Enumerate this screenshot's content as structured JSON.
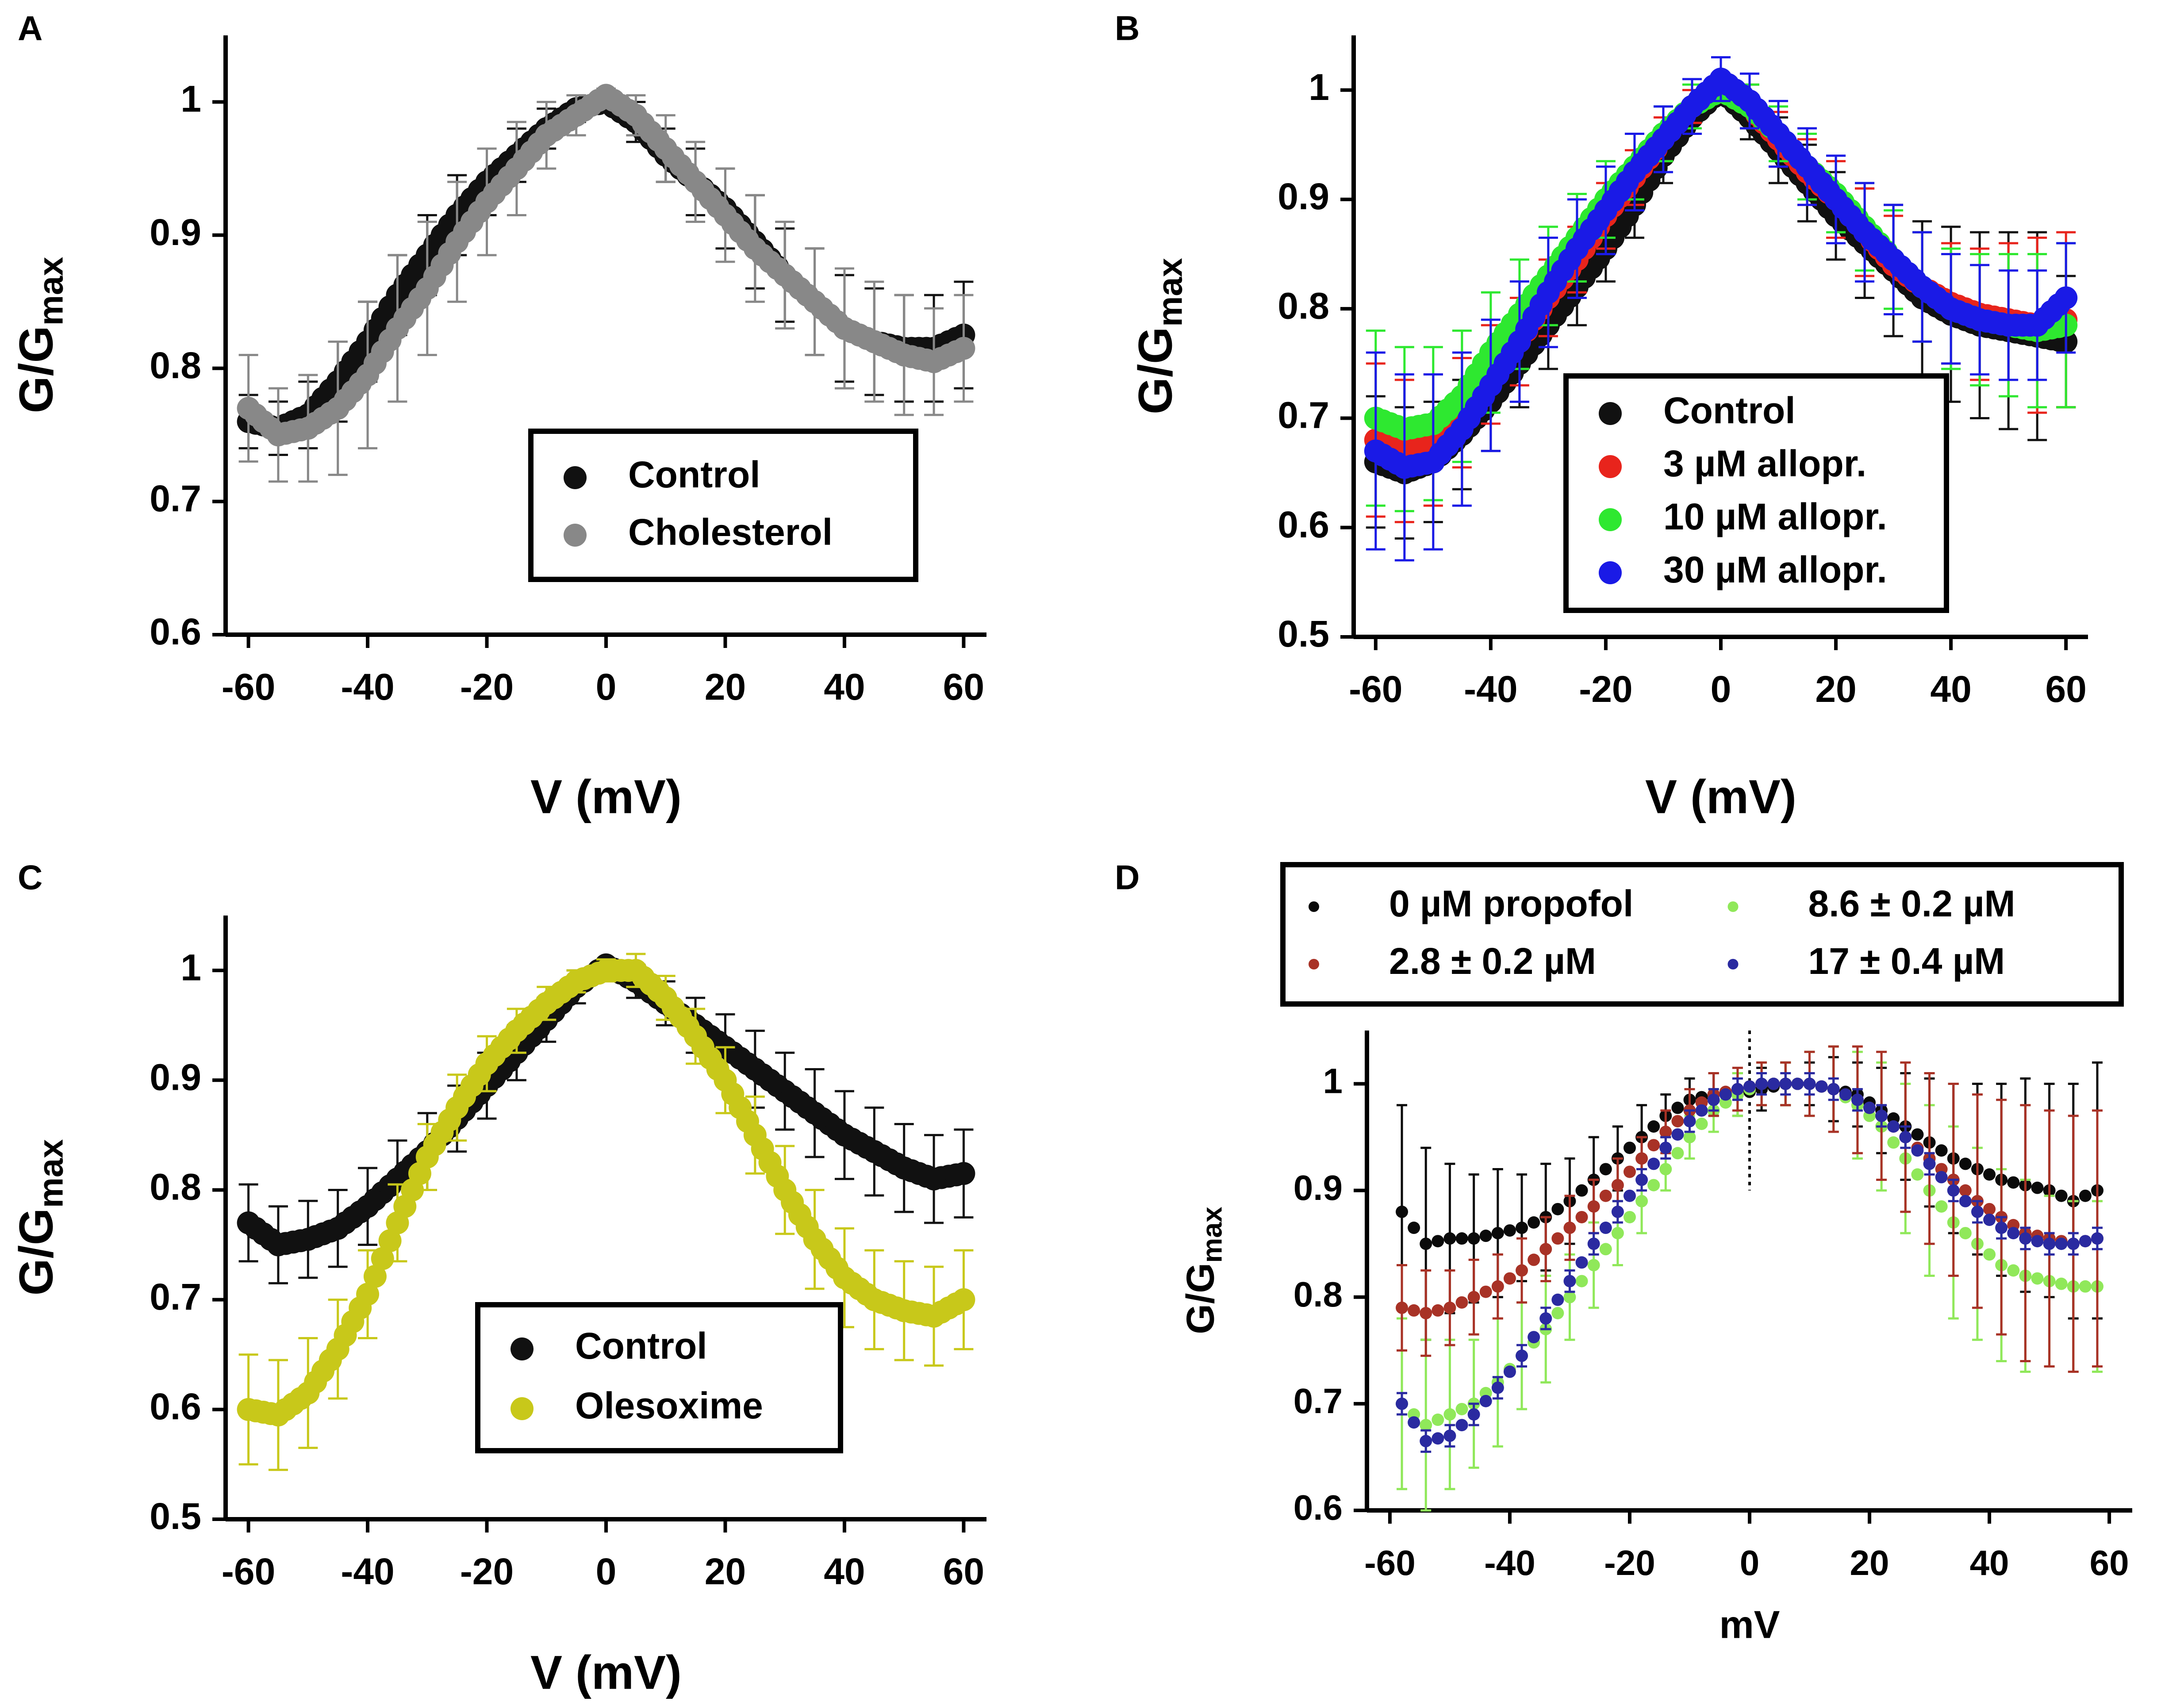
{
  "figure": {
    "panels": [
      "A",
      "B",
      "C",
      "D"
    ]
  },
  "chart_data": [
    {
      "panel": "A",
      "type": "scatter",
      "title": "",
      "xlabel": "V (mV)",
      "ylabel": "G/G",
      "ylabel_sub": "max",
      "xlim": [
        -60,
        60
      ],
      "ylim": [
        0.6,
        1.05
      ],
      "xticks": [
        -60,
        -40,
        -20,
        0,
        20,
        40,
        60
      ],
      "yticks": [
        0.6,
        0.7,
        0.8,
        0.9,
        1.0
      ],
      "legend": {
        "placement": "bottom-right",
        "entries": [
          "Control",
          "Cholesterol"
        ]
      },
      "x": [
        -60,
        -55,
        -50,
        -45,
        -40,
        -35,
        -30,
        -25,
        -20,
        -15,
        -10,
        -5,
        0,
        5,
        10,
        15,
        20,
        25,
        30,
        35,
        40,
        45,
        50,
        55,
        60
      ],
      "series": [
        {
          "name": "Control",
          "color": "#111111",
          "error_color": "#111111",
          "values": [
            0.76,
            0.755,
            0.765,
            0.79,
            0.82,
            0.855,
            0.885,
            0.915,
            0.94,
            0.96,
            0.98,
            0.995,
            1.0,
            0.985,
            0.96,
            0.94,
            0.92,
            0.895,
            0.87,
            0.85,
            0.83,
            0.82,
            0.815,
            0.815,
            0.825
          ],
          "errors": [
            0.02,
            0.02,
            0.025,
            0.03,
            0.03,
            0.03,
            0.03,
            0.03,
            0.025,
            0.02,
            0.015,
            0.01,
            0.005,
            0.015,
            0.02,
            0.025,
            0.03,
            0.035,
            0.035,
            0.04,
            0.04,
            0.04,
            0.04,
            0.04,
            0.04
          ]
        },
        {
          "name": "Cholesterol",
          "color": "#888888",
          "error_color": "#888888",
          "values": [
            0.77,
            0.75,
            0.755,
            0.77,
            0.795,
            0.83,
            0.86,
            0.895,
            0.925,
            0.95,
            0.975,
            0.99,
            1.005,
            0.99,
            0.965,
            0.94,
            0.915,
            0.89,
            0.87,
            0.85,
            0.83,
            0.82,
            0.81,
            0.805,
            0.815
          ],
          "errors": [
            0.04,
            0.035,
            0.04,
            0.05,
            0.055,
            0.055,
            0.05,
            0.045,
            0.04,
            0.035,
            0.025,
            0.015,
            0.005,
            0.015,
            0.025,
            0.03,
            0.035,
            0.04,
            0.04,
            0.04,
            0.045,
            0.045,
            0.045,
            0.04,
            0.04
          ]
        }
      ]
    },
    {
      "panel": "B",
      "type": "scatter",
      "title": "",
      "xlabel": "V (mV)",
      "ylabel": "G/G",
      "ylabel_sub": "max",
      "xlim": [
        -60,
        60
      ],
      "ylim": [
        0.5,
        1.05
      ],
      "xticks": [
        -60,
        -40,
        -20,
        0,
        20,
        40,
        60
      ],
      "yticks": [
        0.5,
        0.6,
        0.7,
        0.8,
        0.9,
        1.0
      ],
      "legend": {
        "placement": "center-right",
        "entries": [
          "Control",
          "3 µM allopr.",
          "10 µM allopr.",
          "30 µM allopr."
        ]
      },
      "x": [
        -60,
        -55,
        -50,
        -45,
        -40,
        -35,
        -30,
        -25,
        -20,
        -15,
        -10,
        -5,
        0,
        5,
        10,
        15,
        20,
        25,
        30,
        35,
        40,
        45,
        50,
        55,
        60
      ],
      "series": [
        {
          "name": "Control",
          "color": "#111111",
          "error_color": "#111111",
          "values": [
            0.66,
            0.65,
            0.66,
            0.685,
            0.715,
            0.75,
            0.785,
            0.82,
            0.855,
            0.895,
            0.94,
            0.975,
            1.0,
            0.975,
            0.945,
            0.915,
            0.885,
            0.86,
            0.835,
            0.81,
            0.795,
            0.785,
            0.78,
            0.775,
            0.77
          ],
          "errors": [
            0.06,
            0.06,
            0.055,
            0.05,
            0.045,
            0.04,
            0.04,
            0.035,
            0.03,
            0.03,
            0.025,
            0.015,
            0.01,
            0.02,
            0.03,
            0.035,
            0.04,
            0.05,
            0.06,
            0.07,
            0.08,
            0.085,
            0.09,
            0.095,
            0.06
          ]
        },
        {
          "name": "3 µM allopr.",
          "color": "#e8241c",
          "error_color": "#e8241c",
          "values": [
            0.68,
            0.67,
            0.68,
            0.705,
            0.74,
            0.77,
            0.81,
            0.845,
            0.885,
            0.92,
            0.955,
            0.985,
            1.0,
            0.985,
            0.955,
            0.925,
            0.9,
            0.87,
            0.84,
            0.82,
            0.805,
            0.795,
            0.79,
            0.785,
            0.79
          ],
          "errors": [
            0.07,
            0.065,
            0.06,
            0.05,
            0.045,
            0.04,
            0.035,
            0.03,
            0.03,
            0.025,
            0.02,
            0.015,
            0.01,
            0.02,
            0.025,
            0.03,
            0.035,
            0.04,
            0.045,
            0.05,
            0.055,
            0.06,
            0.07,
            0.08,
            0.08
          ]
        },
        {
          "name": "10 µM allopr.",
          "color": "#2ee830",
          "error_color": "#2ee830",
          "values": [
            0.7,
            0.69,
            0.695,
            0.72,
            0.76,
            0.795,
            0.83,
            0.865,
            0.9,
            0.93,
            0.96,
            0.985,
            1.0,
            0.985,
            0.96,
            0.93,
            0.905,
            0.875,
            0.845,
            0.82,
            0.8,
            0.79,
            0.785,
            0.78,
            0.785
          ],
          "errors": [
            0.08,
            0.075,
            0.07,
            0.06,
            0.055,
            0.05,
            0.045,
            0.04,
            0.035,
            0.03,
            0.025,
            0.02,
            0.01,
            0.02,
            0.025,
            0.03,
            0.035,
            0.04,
            0.045,
            0.05,
            0.055,
            0.06,
            0.065,
            0.07,
            0.075
          ]
        },
        {
          "name": "30 µM allopr.",
          "color": "#1a1ae6",
          "error_color": "#1a1ae6",
          "values": [
            0.67,
            0.655,
            0.66,
            0.69,
            0.73,
            0.77,
            0.815,
            0.855,
            0.89,
            0.925,
            0.955,
            0.985,
            1.01,
            0.99,
            0.96,
            0.93,
            0.9,
            0.87,
            0.845,
            0.82,
            0.8,
            0.79,
            0.785,
            0.785,
            0.81
          ],
          "errors": [
            0.09,
            0.085,
            0.08,
            0.07,
            0.06,
            0.055,
            0.05,
            0.045,
            0.04,
            0.035,
            0.03,
            0.025,
            0.02,
            0.025,
            0.03,
            0.035,
            0.04,
            0.045,
            0.05,
            0.05,
            0.05,
            0.05,
            0.05,
            0.05,
            0.05
          ]
        }
      ]
    },
    {
      "panel": "C",
      "type": "scatter",
      "title": "",
      "xlabel": "V (mV)",
      "ylabel": "G/G",
      "ylabel_sub": "max",
      "xlim": [
        -60,
        60
      ],
      "ylim": [
        0.5,
        1.05
      ],
      "xticks": [
        -60,
        -40,
        -20,
        0,
        20,
        40,
        60
      ],
      "yticks": [
        0.5,
        0.6,
        0.7,
        0.8,
        0.9,
        1.0
      ],
      "legend": {
        "placement": "bottom-center",
        "entries": [
          "Control",
          "Olesoxime"
        ]
      },
      "x": [
        -60,
        -55,
        -50,
        -45,
        -40,
        -35,
        -30,
        -25,
        -20,
        -15,
        -10,
        -5,
        0,
        5,
        10,
        15,
        20,
        25,
        30,
        35,
        40,
        45,
        50,
        55,
        60
      ],
      "series": [
        {
          "name": "Control",
          "color": "#111111",
          "error_color": "#111111",
          "values": [
            0.77,
            0.75,
            0.755,
            0.765,
            0.785,
            0.81,
            0.835,
            0.865,
            0.895,
            0.925,
            0.955,
            0.985,
            1.005,
            0.99,
            0.97,
            0.95,
            0.93,
            0.91,
            0.89,
            0.87,
            0.85,
            0.835,
            0.82,
            0.81,
            0.815
          ],
          "errors": [
            0.035,
            0.035,
            0.035,
            0.035,
            0.035,
            0.035,
            0.035,
            0.03,
            0.03,
            0.025,
            0.02,
            0.015,
            0.005,
            0.015,
            0.02,
            0.025,
            0.03,
            0.035,
            0.035,
            0.04,
            0.04,
            0.04,
            0.04,
            0.04,
            0.04
          ]
        },
        {
          "name": "Olesoxime",
          "color": "#c8c81a",
          "error_color": "#c8c81a",
          "values": [
            0.6,
            0.595,
            0.615,
            0.655,
            0.705,
            0.77,
            0.83,
            0.875,
            0.915,
            0.945,
            0.97,
            0.99,
            1.0,
            1.0,
            0.975,
            0.94,
            0.9,
            0.85,
            0.8,
            0.755,
            0.72,
            0.7,
            0.69,
            0.685,
            0.7
          ],
          "errors": [
            0.05,
            0.05,
            0.05,
            0.045,
            0.04,
            0.035,
            0.03,
            0.03,
            0.025,
            0.02,
            0.015,
            0.01,
            0.01,
            0.015,
            0.02,
            0.025,
            0.03,
            0.035,
            0.04,
            0.045,
            0.045,
            0.045,
            0.045,
            0.045,
            0.045
          ]
        }
      ]
    },
    {
      "panel": "D",
      "type": "scatter",
      "title": "",
      "xlabel": "mV",
      "ylabel": "G/G",
      "ylabel_sub": "max",
      "xlim": [
        -60,
        60
      ],
      "ylim": [
        0.6,
        1.05
      ],
      "xticks": [
        -60,
        -40,
        -20,
        0,
        20,
        40,
        60
      ],
      "yticks": [
        0.6,
        0.7,
        0.8,
        0.9,
        1.0
      ],
      "legend": {
        "placement": "top",
        "entries": [
          "0 µM propofol",
          "8.6 ± 0.2 µM",
          "2.8 ± 0.2 µM",
          "17 ± 0.4 µM"
        ]
      },
      "x": [
        -58,
        -54,
        -50,
        -46,
        -42,
        -38,
        -34,
        -30,
        -26,
        -22,
        -18,
        -14,
        -10,
        -6,
        -2,
        2,
        6,
        10,
        14,
        18,
        22,
        26,
        30,
        34,
        38,
        42,
        46,
        50,
        54,
        58
      ],
      "series": [
        {
          "name": "0 µM propofol",
          "color": "#0a0a0a",
          "error_color": "#0a0a0a",
          "values": [
            0.88,
            0.85,
            0.855,
            0.855,
            0.86,
            0.865,
            0.875,
            0.89,
            0.91,
            0.93,
            0.95,
            0.97,
            0.985,
            0.99,
            0.99,
            0.995,
            1.0,
            1.0,
            0.995,
            0.99,
            0.975,
            0.96,
            0.945,
            0.93,
            0.92,
            0.91,
            0.905,
            0.9,
            0.89,
            0.9
          ],
          "errors": [
            0.1,
            0.09,
            0.07,
            0.06,
            0.06,
            0.05,
            0.05,
            0.04,
            0.04,
            0.03,
            0.03,
            0.02,
            0.02,
            0.02,
            0.02,
            0.02,
            0.02,
            0.02,
            0.03,
            0.03,
            0.04,
            0.05,
            0.06,
            0.07,
            0.08,
            0.09,
            0.1,
            0.1,
            0.11,
            0.12
          ]
        },
        {
          "name": "8.6 ± 0.2 µM",
          "color": "#90e85a",
          "error_color": "#90e85a",
          "values": [
            0.7,
            0.68,
            0.69,
            0.7,
            0.72,
            0.745,
            0.77,
            0.8,
            0.83,
            0.86,
            0.89,
            0.92,
            0.95,
            0.975,
            0.99,
            1.0,
            1.0,
            1.0,
            0.995,
            0.98,
            0.96,
            0.93,
            0.9,
            0.87,
            0.85,
            0.83,
            0.82,
            0.815,
            0.81,
            0.81
          ],
          "errors": [
            0.08,
            0.08,
            0.07,
            0.06,
            0.06,
            0.05,
            0.05,
            0.04,
            0.04,
            0.03,
            0.03,
            0.02,
            0.02,
            0.02,
            0.02,
            0.02,
            0.02,
            0.03,
            0.04,
            0.05,
            0.06,
            0.07,
            0.08,
            0.09,
            0.09,
            0.09,
            0.09,
            0.08,
            0.08,
            0.08
          ]
        },
        {
          "name": "2.8 ± 0.2 µM",
          "color": "#a83226",
          "error_color": "#a83226",
          "values": [
            0.79,
            0.785,
            0.79,
            0.8,
            0.81,
            0.825,
            0.845,
            0.865,
            0.885,
            0.905,
            0.93,
            0.955,
            0.975,
            0.99,
            0.995,
            1.0,
            1.0,
            1.0,
            0.995,
            0.985,
            0.97,
            0.95,
            0.93,
            0.91,
            0.89,
            0.875,
            0.86,
            0.855,
            0.85,
            0.855
          ],
          "errors": [
            0.04,
            0.04,
            0.035,
            0.035,
            0.03,
            0.03,
            0.03,
            0.03,
            0.025,
            0.025,
            0.02,
            0.02,
            0.02,
            0.02,
            0.02,
            0.02,
            0.02,
            0.03,
            0.04,
            0.05,
            0.06,
            0.07,
            0.08,
            0.09,
            0.1,
            0.11,
            0.12,
            0.12,
            0.12,
            0.12
          ]
        },
        {
          "name": "17 ± 0.4 µM",
          "color": "#2a2aa0",
          "error_color": "#2a2aa0",
          "values": [
            0.7,
            0.665,
            0.67,
            0.69,
            0.715,
            0.745,
            0.78,
            0.815,
            0.85,
            0.88,
            0.91,
            0.94,
            0.965,
            0.985,
            0.995,
            1.0,
            1.0,
            1.0,
            0.995,
            0.985,
            0.97,
            0.95,
            0.925,
            0.9,
            0.88,
            0.865,
            0.855,
            0.85,
            0.85,
            0.855
          ],
          "errors": [
            0.01,
            0.01,
            0.01,
            0.01,
            0.01,
            0.01,
            0.01,
            0.01,
            0.01,
            0.01,
            0.01,
            0.01,
            0.01,
            0.01,
            0.01,
            0.01,
            0.01,
            0.01,
            0.01,
            0.01,
            0.01,
            0.01,
            0.01,
            0.01,
            0.01,
            0.01,
            0.01,
            0.01,
            0.01,
            0.01
          ]
        }
      ]
    }
  ]
}
